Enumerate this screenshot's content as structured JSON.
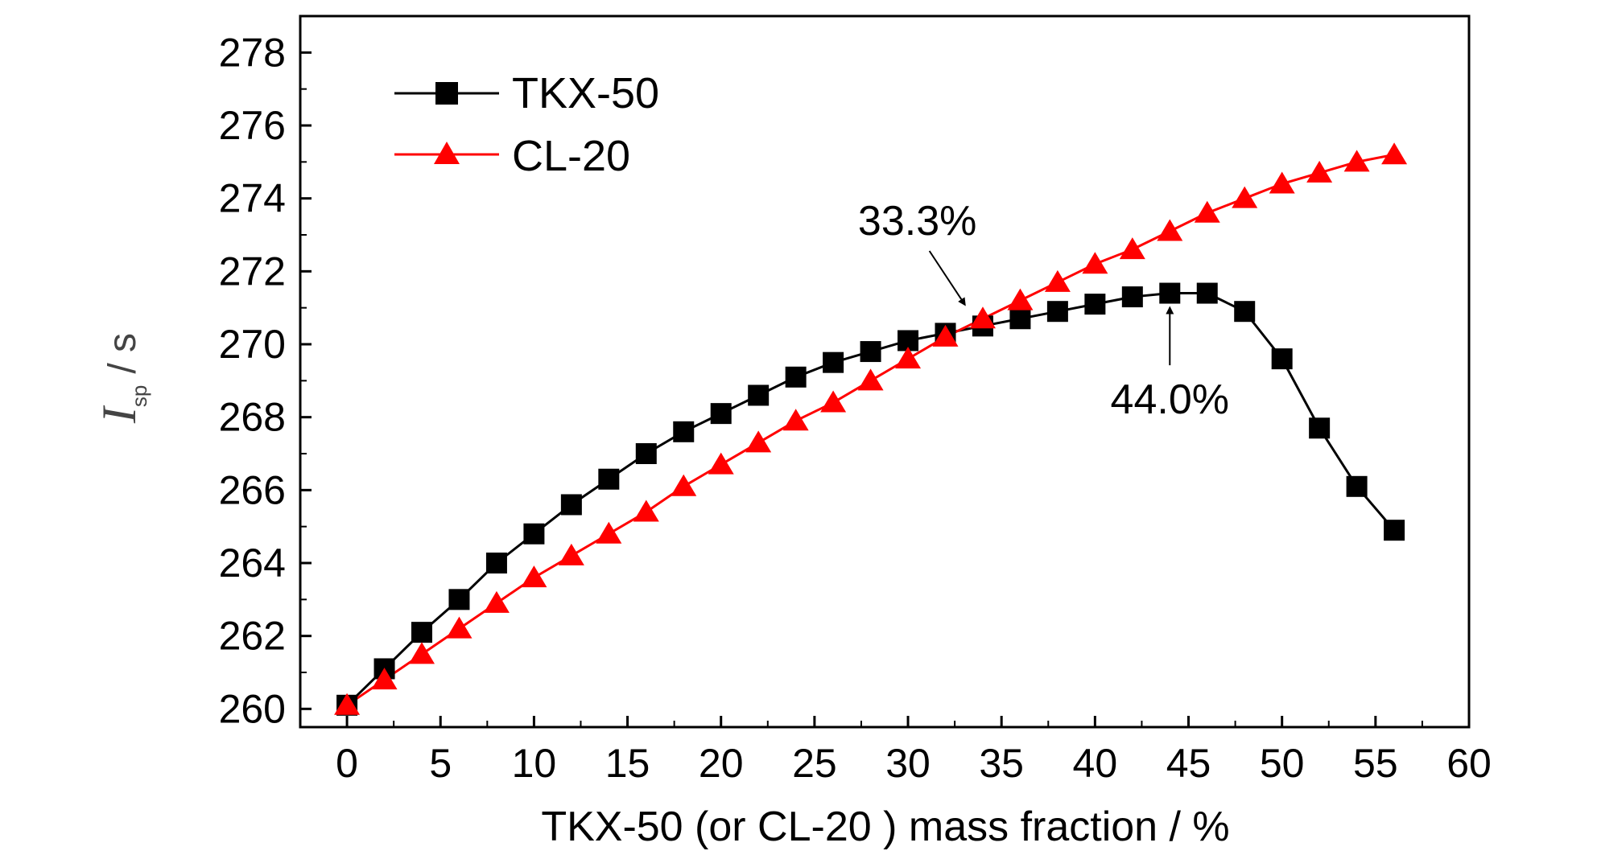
{
  "chart_data": {
    "type": "line",
    "title": "",
    "xlabel": "TKX-50 (or CL-20 ) mass fraction / %",
    "ylabel": {
      "symbol": "I",
      "subscript": "sp",
      "unit": "/ s"
    },
    "xlim": [
      -2.5,
      60
    ],
    "ylim": [
      259.5,
      279
    ],
    "xticks": [
      0,
      5,
      10,
      15,
      20,
      25,
      30,
      35,
      40,
      45,
      50,
      55,
      60
    ],
    "yticks": [
      260,
      262,
      264,
      266,
      268,
      270,
      272,
      274,
      276,
      278
    ],
    "grid": false,
    "legend_position": "top-left",
    "series": [
      {
        "name": "TKX-50",
        "color": "#000000",
        "marker": "square",
        "x": [
          0,
          2,
          4,
          6,
          8,
          10,
          12,
          14,
          16,
          18,
          20,
          22,
          24,
          26,
          28,
          30,
          32,
          34,
          36,
          38,
          40,
          42,
          44,
          46,
          48,
          50,
          52,
          54,
          56
        ],
        "y": [
          260.1,
          261.1,
          262.1,
          263.0,
          264.0,
          264.8,
          265.6,
          266.3,
          267.0,
          267.6,
          268.1,
          268.6,
          269.1,
          269.5,
          269.8,
          270.1,
          270.3,
          270.5,
          270.7,
          270.9,
          271.1,
          271.3,
          271.4,
          271.4,
          270.9,
          269.6,
          267.7,
          266.1,
          264.9
        ]
      },
      {
        "name": "CL-20",
        "color": "#ff0000",
        "marker": "triangle",
        "x": [
          0,
          2,
          4,
          6,
          8,
          10,
          12,
          14,
          16,
          18,
          20,
          22,
          24,
          26,
          28,
          30,
          32,
          34,
          36,
          38,
          40,
          42,
          44,
          46,
          48,
          50,
          52,
          54,
          56
        ],
        "y": [
          260.1,
          260.8,
          261.5,
          262.2,
          262.9,
          263.6,
          264.2,
          264.8,
          265.4,
          266.1,
          266.7,
          267.3,
          267.9,
          268.4,
          269.0,
          269.6,
          270.2,
          270.7,
          271.2,
          271.7,
          272.2,
          272.6,
          273.1,
          273.6,
          274.0,
          274.4,
          274.7,
          275.0,
          275.2
        ]
      }
    ],
    "annotations": [
      {
        "text": "33.3%",
        "point": [
          33.3,
          270.6
        ],
        "text_anchor": [
          30.5,
          273.0
        ]
      },
      {
        "text": "44.0%",
        "point": [
          44.0,
          271.4
        ],
        "text_anchor": [
          44.0,
          268.1
        ]
      }
    ]
  }
}
